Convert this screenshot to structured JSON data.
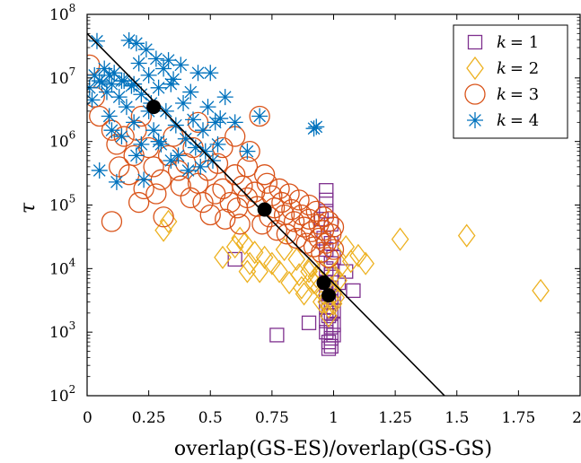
{
  "chart_data": {
    "type": "scatter",
    "xlabel": "overlap(GS-ES)/overlap(GS-GS)",
    "ylabel": "τ",
    "xlim": [
      0,
      2
    ],
    "ylim": [
      100,
      100000000
    ],
    "yscale": "log",
    "grid": false,
    "legend": "top-right",
    "x_ticks": [
      0,
      0.25,
      0.5,
      0.75,
      1,
      1.25,
      1.5,
      1.75,
      2
    ],
    "x_tick_labels": [
      "0",
      "0.25",
      "0.5",
      "0.75",
      "1",
      "1.25",
      "1.5",
      "1.75",
      "2"
    ],
    "y_ticks": [
      100,
      1000,
      10000,
      100000,
      1000000,
      10000000,
      100000000
    ],
    "y_tick_labels": [
      {
        "base": "10",
        "exp": "2"
      },
      {
        "base": "10",
        "exp": "3"
      },
      {
        "base": "10",
        "exp": "4"
      },
      {
        "base": "10",
        "exp": "5"
      },
      {
        "base": "10",
        "exp": "6"
      },
      {
        "base": "10",
        "exp": "7"
      },
      {
        "base": "10",
        "exp": "8"
      }
    ],
    "series": [
      {
        "name": "k = 1",
        "label_var": "k",
        "label_eq": "= 1",
        "marker": "square",
        "color": "#7E2F8E",
        "points": [
          [
            0.6,
            14000
          ],
          [
            0.77,
            900
          ],
          [
            0.9,
            1400
          ],
          [
            0.95,
            60000
          ],
          [
            0.96,
            30000
          ],
          [
            0.97,
            170000
          ],
          [
            0.97,
            120000
          ],
          [
            0.97,
            80000
          ],
          [
            0.97,
            20000
          ],
          [
            0.97,
            10000
          ],
          [
            0.97,
            6000
          ],
          [
            0.97,
            4000
          ],
          [
            0.97,
            2500
          ],
          [
            0.97,
            1500
          ],
          [
            0.97,
            1000
          ],
          [
            0.98,
            700
          ],
          [
            0.98,
            550
          ],
          [
            0.99,
            50000
          ],
          [
            0.99,
            25000
          ],
          [
            0.99,
            12000
          ],
          [
            0.99,
            8000
          ],
          [
            0.99,
            5000
          ],
          [
            0.99,
            3000
          ],
          [
            0.99,
            2000
          ],
          [
            0.99,
            1200
          ],
          [
            0.99,
            800
          ],
          [
            0.99,
            600
          ],
          [
            1.0,
            15000
          ],
          [
            1.0,
            3500
          ],
          [
            1.0,
            2200
          ],
          [
            1.0,
            1300
          ],
          [
            1.0,
            900
          ],
          [
            1.02,
            6000
          ],
          [
            1.05,
            9000
          ],
          [
            1.08,
            4500
          ],
          [
            0.98,
            3000
          ],
          [
            0.98,
            1800
          ]
        ]
      },
      {
        "name": "k = 2",
        "label_var": "k",
        "label_eq": "= 2",
        "marker": "diamond",
        "color": "#EDB120",
        "points": [
          [
            0.31,
            40000
          ],
          [
            0.33,
            55000
          ],
          [
            0.55,
            15000
          ],
          [
            0.6,
            22000
          ],
          [
            0.62,
            30000
          ],
          [
            0.64,
            25000
          ],
          [
            0.65,
            9000
          ],
          [
            0.66,
            12000
          ],
          [
            0.68,
            18000
          ],
          [
            0.7,
            9000
          ],
          [
            0.72,
            15000
          ],
          [
            0.75,
            12000
          ],
          [
            0.78,
            9000
          ],
          [
            0.8,
            20000
          ],
          [
            0.82,
            6000
          ],
          [
            0.85,
            14000
          ],
          [
            0.86,
            8000
          ],
          [
            0.87,
            5000
          ],
          [
            0.88,
            4000
          ],
          [
            0.9,
            9000
          ],
          [
            0.91,
            11000
          ],
          [
            0.92,
            6000
          ],
          [
            0.93,
            7500
          ],
          [
            0.94,
            5000
          ],
          [
            0.95,
            3000
          ],
          [
            0.95,
            9000
          ],
          [
            0.96,
            4000
          ],
          [
            0.97,
            3000
          ],
          [
            0.98,
            2500
          ],
          [
            0.98,
            1800
          ],
          [
            0.99,
            5000
          ],
          [
            1.0,
            8000
          ],
          [
            1.0,
            4000
          ],
          [
            1.0,
            2800
          ],
          [
            1.01,
            3500
          ],
          [
            1.02,
            6500
          ],
          [
            1.03,
            11000
          ],
          [
            1.05,
            22000
          ],
          [
            1.07,
            13000
          ],
          [
            1.1,
            16000
          ],
          [
            1.13,
            12000
          ],
          [
            1.27,
            29000
          ],
          [
            1.54,
            33000
          ],
          [
            1.84,
            4500
          ]
        ]
      },
      {
        "name": "k = 3",
        "label_var": "k",
        "label_eq": "= 3",
        "marker": "circle",
        "color": "#D95319",
        "points": [
          [
            0.01,
            16000000
          ],
          [
            0.03,
            5000000
          ],
          [
            0.05,
            2500000
          ],
          [
            0.1,
            1500000
          ],
          [
            0.1,
            55000
          ],
          [
            0.12,
            900000
          ],
          [
            0.13,
            400000
          ],
          [
            0.15,
            1200000
          ],
          [
            0.17,
            300000
          ],
          [
            0.19,
            600000
          ],
          [
            0.2,
            1500000
          ],
          [
            0.21,
            110000
          ],
          [
            0.22,
            2500000
          ],
          [
            0.23,
            180000
          ],
          [
            0.25,
            800000
          ],
          [
            0.27,
            400000
          ],
          [
            0.28,
            150000
          ],
          [
            0.3,
            250000
          ],
          [
            0.31,
            65000
          ],
          [
            0.33,
            600000
          ],
          [
            0.35,
            1200000
          ],
          [
            0.37,
            350000
          ],
          [
            0.38,
            200000
          ],
          [
            0.4,
            450000
          ],
          [
            0.42,
            130000
          ],
          [
            0.43,
            800000
          ],
          [
            0.45,
            220000
          ],
          [
            0.47,
            110000
          ],
          [
            0.49,
            350000
          ],
          [
            0.5,
            70000
          ],
          [
            0.52,
            150000
          ],
          [
            0.53,
            450000
          ],
          [
            0.55,
            180000
          ],
          [
            0.56,
            60000
          ],
          [
            0.58,
            110000
          ],
          [
            0.6,
            300000
          ],
          [
            0.61,
            90000
          ],
          [
            0.62,
            50000
          ],
          [
            0.63,
            200000
          ],
          [
            0.65,
            130000
          ],
          [
            0.66,
            700000
          ],
          [
            0.68,
            160000
          ],
          [
            0.69,
            95000
          ],
          [
            0.7,
            2500000
          ],
          [
            0.71,
            50000
          ],
          [
            0.72,
            300000
          ],
          [
            0.73,
            220000
          ],
          [
            0.74,
            65000
          ],
          [
            0.75,
            140000
          ],
          [
            0.76,
            90000
          ],
          [
            0.77,
            40000
          ],
          [
            0.78,
            180000
          ],
          [
            0.79,
            110000
          ],
          [
            0.8,
            70000
          ],
          [
            0.81,
            35000
          ],
          [
            0.82,
            150000
          ],
          [
            0.83,
            85000
          ],
          [
            0.84,
            55000
          ],
          [
            0.85,
            30000
          ],
          [
            0.86,
            120000
          ],
          [
            0.87,
            70000
          ],
          [
            0.88,
            45000
          ],
          [
            0.89,
            25000
          ],
          [
            0.9,
            100000
          ],
          [
            0.9,
            60000
          ],
          [
            0.91,
            38000
          ],
          [
            0.92,
            22000
          ],
          [
            0.93,
            80000
          ],
          [
            0.94,
            50000
          ],
          [
            0.94,
            30000
          ],
          [
            0.95,
            18000
          ],
          [
            0.96,
            65000
          ],
          [
            0.96,
            40000
          ],
          [
            0.97,
            25000
          ],
          [
            0.98,
            15000
          ],
          [
            0.98,
            55000
          ],
          [
            0.99,
            35000
          ],
          [
            1.0,
            20000
          ],
          [
            1.0,
            45000
          ],
          [
            0.6,
            1200000
          ],
          [
            0.55,
            800000
          ],
          [
            0.45,
            2000000
          ],
          [
            0.65,
            400000
          ]
        ]
      },
      {
        "name": "k = 4",
        "label_var": "k",
        "label_eq": "= 4",
        "marker": "asterisk",
        "color": "#0072BD",
        "points": [
          [
            0.01,
            7000000
          ],
          [
            0.02,
            4500000
          ],
          [
            0.03,
            11000000
          ],
          [
            0.04,
            38000000
          ],
          [
            0.05,
            9000000
          ],
          [
            0.05,
            350000
          ],
          [
            0.07,
            14000000
          ],
          [
            0.08,
            6000000
          ],
          [
            0.09,
            2500000
          ],
          [
            0.1,
            8000000
          ],
          [
            0.1,
            1500000
          ],
          [
            0.11,
            12000000
          ],
          [
            0.12,
            230000
          ],
          [
            0.13,
            5000000
          ],
          [
            0.14,
            1200000
          ],
          [
            0.15,
            9000000
          ],
          [
            0.16,
            3500000
          ],
          [
            0.17,
            39000000
          ],
          [
            0.18,
            7500000
          ],
          [
            0.19,
            2000000
          ],
          [
            0.2,
            35000000
          ],
          [
            0.2,
            600000
          ],
          [
            0.21,
            17000000
          ],
          [
            0.22,
            5500000
          ],
          [
            0.23,
            250000
          ],
          [
            0.24,
            28000000
          ],
          [
            0.25,
            11000000
          ],
          [
            0.26,
            4000000
          ],
          [
            0.27,
            1500000
          ],
          [
            0.28,
            20000000
          ],
          [
            0.29,
            7000000
          ],
          [
            0.3,
            900000
          ],
          [
            0.31,
            14000000
          ],
          [
            0.32,
            3000000
          ],
          [
            0.33,
            19000000
          ],
          [
            0.34,
            500000
          ],
          [
            0.35,
            9500000
          ],
          [
            0.36,
            1800000
          ],
          [
            0.37,
            600000
          ],
          [
            0.38,
            16000000
          ],
          [
            0.39,
            4000000
          ],
          [
            0.4,
            1100000
          ],
          [
            0.41,
            350000
          ],
          [
            0.42,
            6000000
          ],
          [
            0.43,
            2200000
          ],
          [
            0.44,
            800000
          ],
          [
            0.45,
            12000000
          ],
          [
            0.46,
            400000
          ],
          [
            0.47,
            1500000
          ],
          [
            0.48,
            700000
          ],
          [
            0.49,
            3500000
          ],
          [
            0.5,
            12000000
          ],
          [
            0.51,
            500000
          ],
          [
            0.52,
            2000000
          ],
          [
            0.53,
            900000
          ],
          [
            0.54,
            2300000
          ],
          [
            0.56,
            5000000
          ],
          [
            0.6,
            2000000
          ],
          [
            0.65,
            700000
          ],
          [
            0.7,
            2500000
          ],
          [
            0.92,
            1600000
          ],
          [
            0.93,
            1700000
          ],
          [
            0.09,
            11000000
          ],
          [
            0.14,
            9000000
          ],
          [
            0.06,
            8500000
          ],
          [
            0.19,
            8000000
          ],
          [
            0.22,
            900000
          ],
          [
            0.34,
            8000000
          ],
          [
            0.25,
            3000000
          ],
          [
            0.29,
            1000000
          ]
        ]
      }
    ],
    "highlight_points": [
      [
        0.27,
        3500000
      ],
      [
        0.72,
        85000
      ],
      [
        0.96,
        6000
      ],
      [
        0.98,
        3800
      ]
    ],
    "fit_line": {
      "x": [
        0,
        1.45
      ],
      "y": [
        50000000,
        100
      ]
    }
  }
}
